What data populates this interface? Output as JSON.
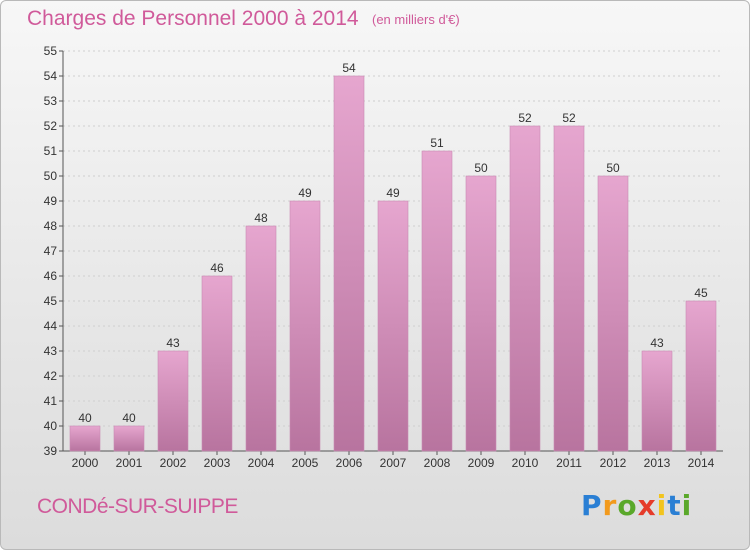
{
  "header": {
    "title": "Charges de Personnel 2000 à 2014",
    "subtitle": "(en milliers d'€)"
  },
  "footer": {
    "commune": "CONDé-SUR-SUIPPE",
    "logo_letters": [
      "P",
      "r",
      "o",
      "x",
      "i",
      "t",
      "i"
    ],
    "logo_colors": [
      "#2a7fd4",
      "#f29a1d",
      "#5aa82a",
      "#e53b2a",
      "#f2c41d",
      "#2a7fd4",
      "#5aa82a"
    ]
  },
  "colors": {
    "bar_top": "#e6a6cf",
    "bar_bottom": "#b8749f",
    "title": "#d05a9a"
  },
  "chart_data": {
    "type": "bar",
    "categories": [
      "2000",
      "2001",
      "2002",
      "2003",
      "2004",
      "2005",
      "2006",
      "2007",
      "2008",
      "2009",
      "2010",
      "2011",
      "2012",
      "2013",
      "2014"
    ],
    "values": [
      40,
      40,
      43,
      46,
      48,
      49,
      54,
      49,
      51,
      50,
      52,
      52,
      50,
      43,
      45
    ],
    "title": "Charges de Personnel 2000 à 2014",
    "xlabel": "",
    "ylabel": "",
    "ylim": [
      39,
      55
    ],
    "yticks": [
      39,
      40,
      41,
      42,
      43,
      44,
      45,
      46,
      47,
      48,
      49,
      50,
      51,
      52,
      53,
      54,
      55
    ],
    "grid": true
  }
}
